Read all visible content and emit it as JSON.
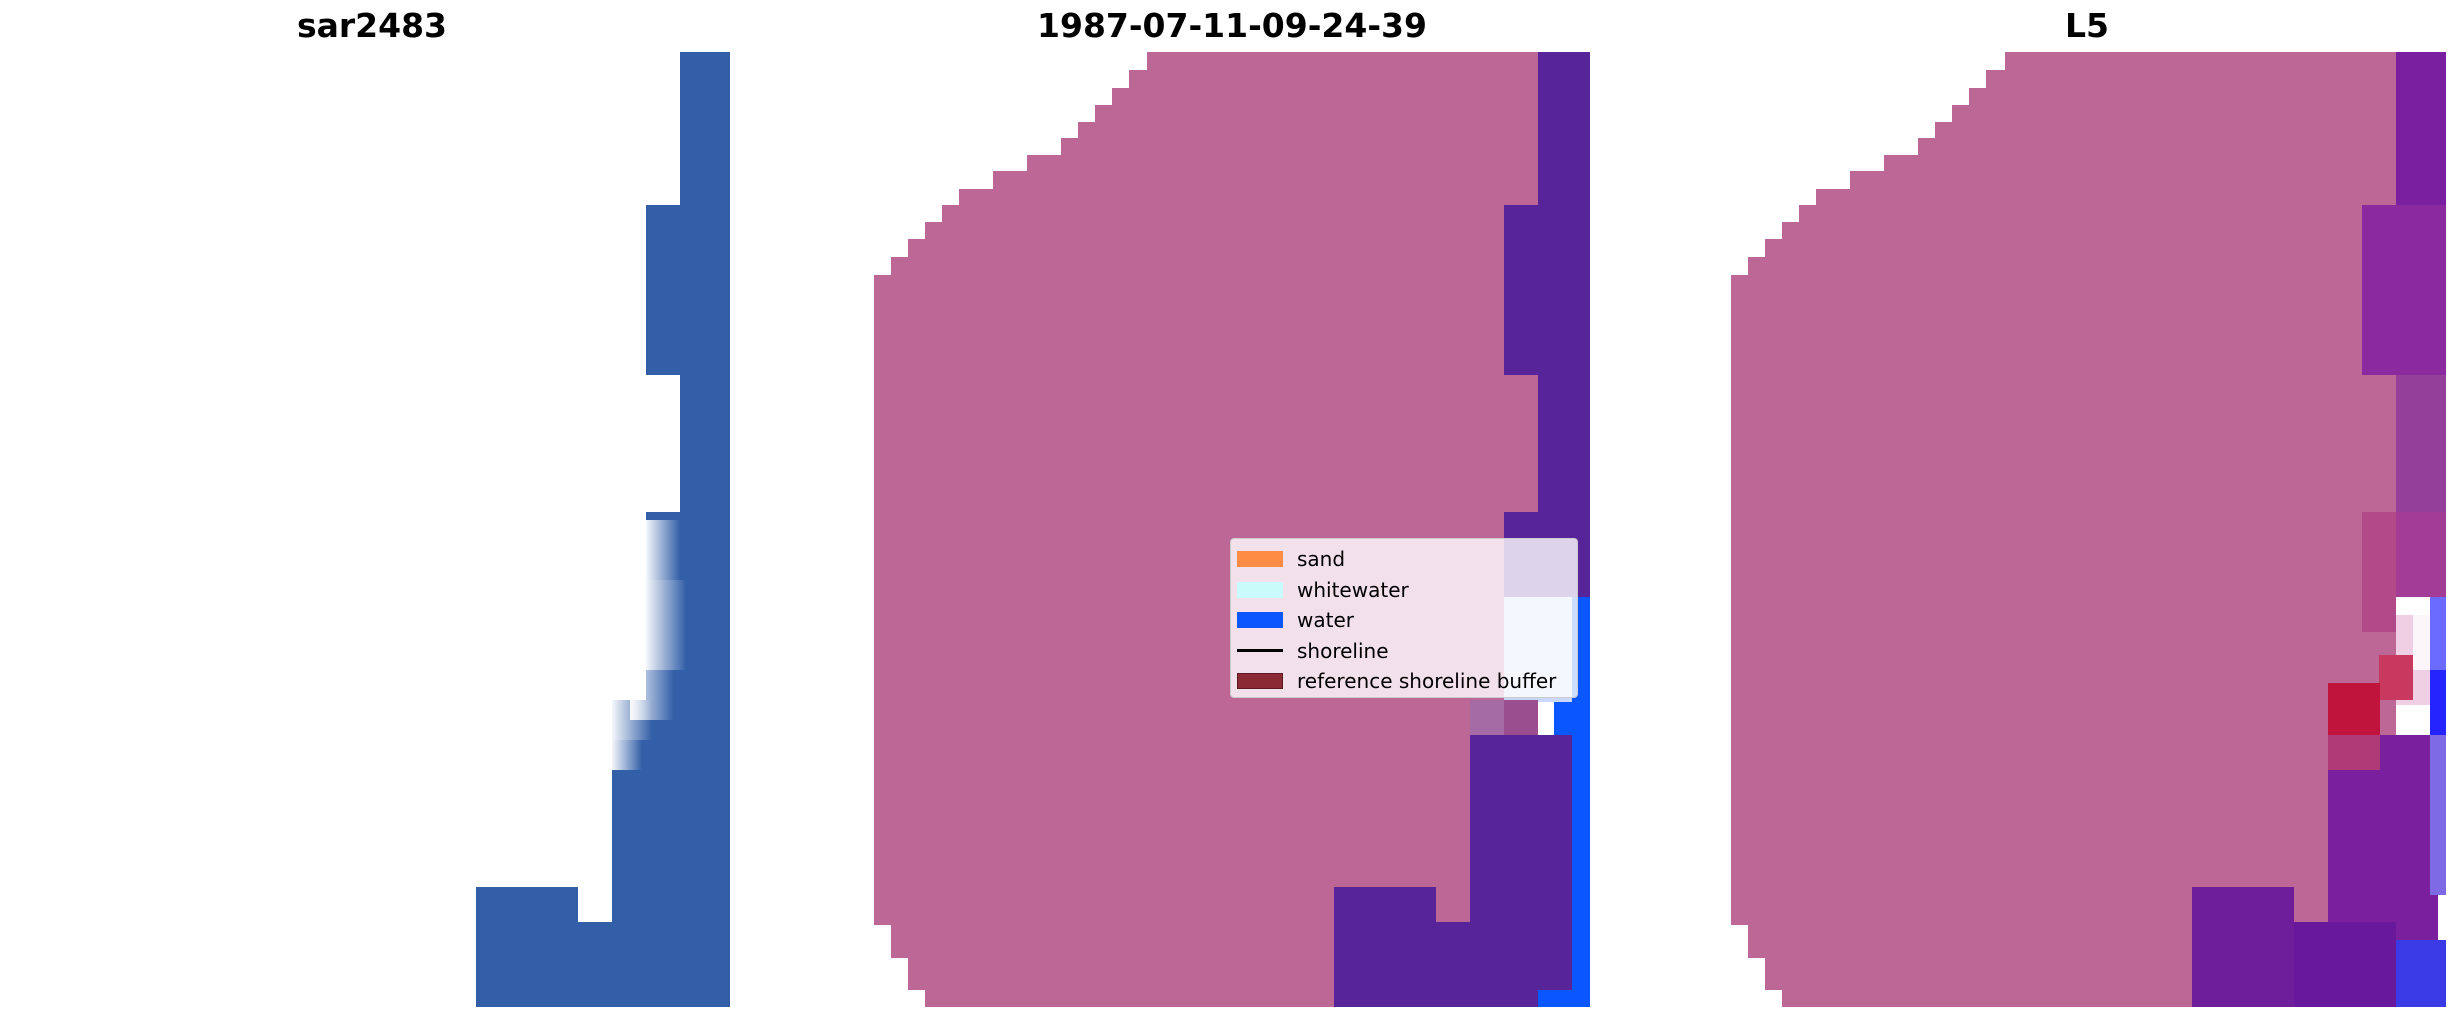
{
  "panels": [
    {
      "title": "sar2483"
    },
    {
      "title": "1987-07-11-09-24-39"
    },
    {
      "title": "L5"
    }
  ],
  "legend": {
    "items": [
      {
        "label": "sand",
        "color": "#ff8c45",
        "kind": "patch"
      },
      {
        "label": "whitewater",
        "color": "#c8fbf9",
        "kind": "patch"
      },
      {
        "label": "water",
        "color": "#0a56ff",
        "kind": "patch"
      },
      {
        "label": "shoreline",
        "color": "#000000",
        "kind": "line"
      },
      {
        "label": "reference shoreline buffer",
        "color": "#8b2a35",
        "kind": "patch"
      }
    ]
  },
  "colors": {
    "sar_water": "#335fa8",
    "land_overlay": "#bc6796",
    "water_overlay": "#572499",
    "bright_water": "#0a56ff",
    "buffer_red": "#c0143c"
  }
}
